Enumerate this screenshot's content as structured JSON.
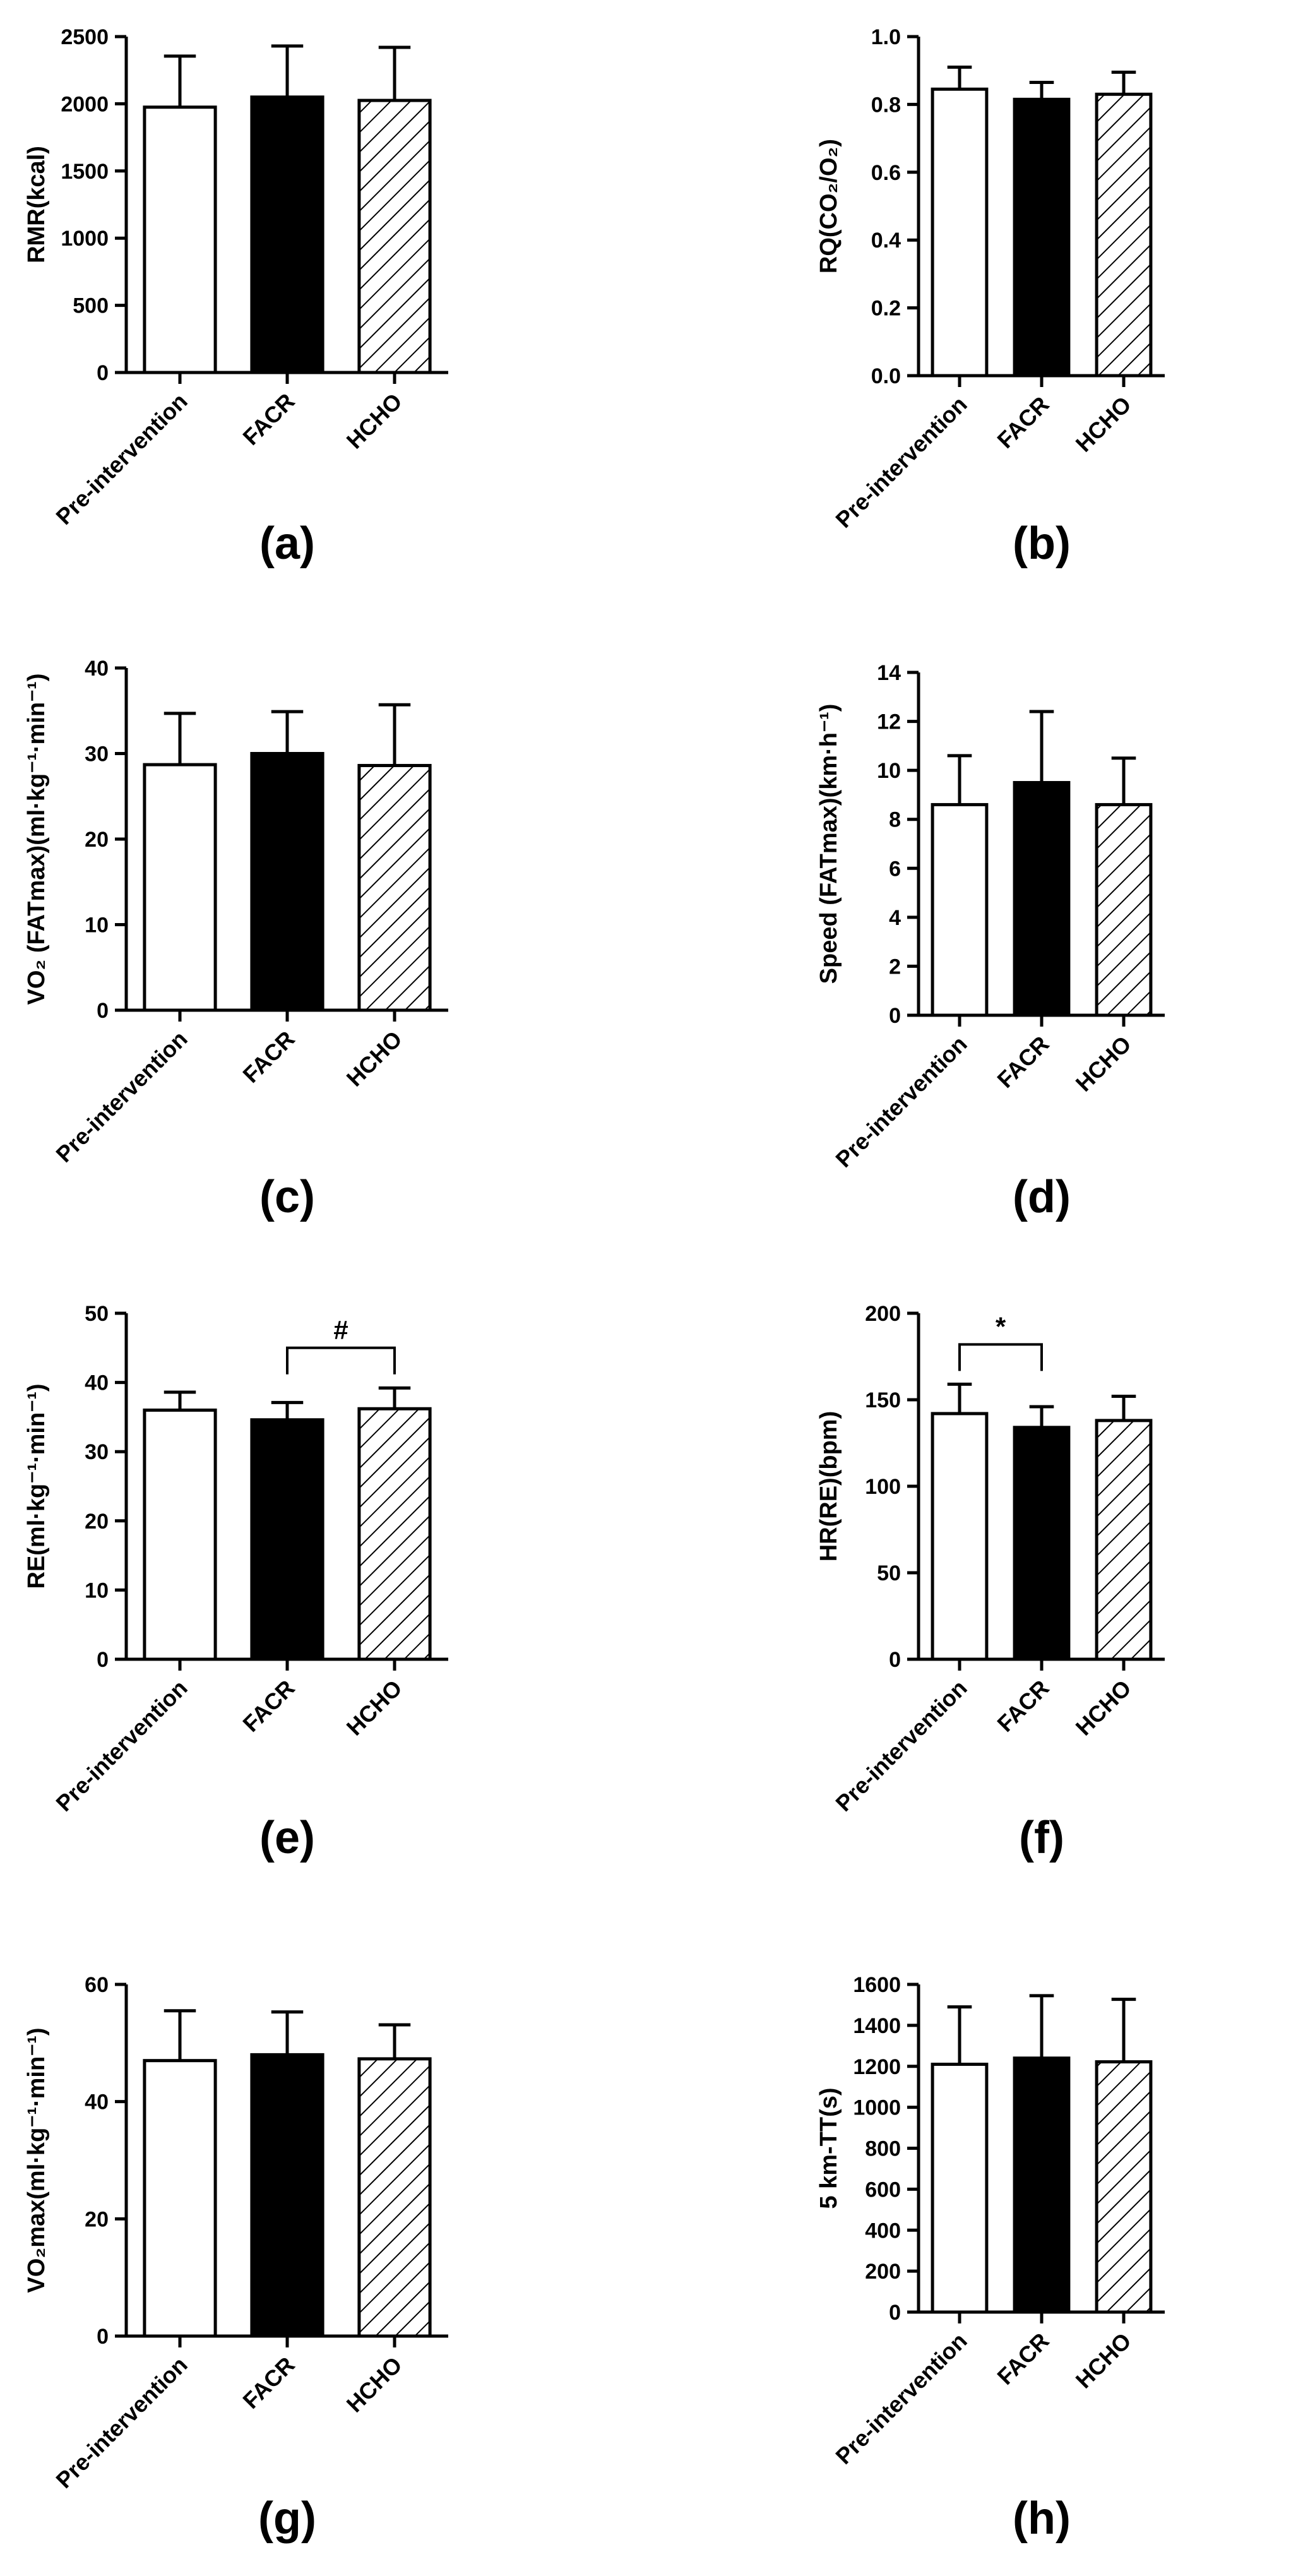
{
  "colors": {
    "ink": "#000000",
    "paper": "#ffffff"
  },
  "chart_data": [
    {
      "id": "a",
      "type": "bar",
      "panel_label": "(a)",
      "ylabel": "RMR(kcal)",
      "categories": [
        "Pre-intervention",
        "FACR",
        "HCHO"
      ],
      "values": [
        1975,
        2050,
        2025
      ],
      "errors": [
        380,
        380,
        395
      ],
      "ylim": [
        0,
        2500
      ],
      "yticks": [
        0,
        500,
        1000,
        1500,
        2000,
        2500
      ],
      "yticklabels": [
        "0",
        "500",
        "1000",
        "1500",
        "2000",
        "2500"
      ],
      "fills": [
        "white",
        "black",
        "hatch"
      ],
      "bracket": null
    },
    {
      "id": "b",
      "type": "bar",
      "panel_label": "(b)",
      "ylabel": "RQ(CO₂/O₂)",
      "categories": [
        "Pre-intervention",
        "FACR",
        "HCHO"
      ],
      "values": [
        0.845,
        0.815,
        0.83
      ],
      "errors": [
        0.065,
        0.05,
        0.065
      ],
      "ylim": [
        0,
        1.0
      ],
      "yticks": [
        0,
        0.2,
        0.4,
        0.6,
        0.8,
        1.0
      ],
      "yticklabels": [
        "0.0",
        "0.2",
        "0.4",
        "0.6",
        "0.8",
        "1.0"
      ],
      "fills": [
        "white",
        "black",
        "hatch"
      ],
      "bracket": null
    },
    {
      "id": "c",
      "type": "bar",
      "panel_label": "(c)",
      "ylabel": "VO₂ (FATmax)(ml·kg⁻¹·min⁻¹)",
      "categories": [
        "Pre-intervention",
        "FACR",
        "HCHO"
      ],
      "values": [
        28.7,
        30.0,
        28.6
      ],
      "errors": [
        6.0,
        4.9,
        7.1
      ],
      "ylim": [
        0,
        40
      ],
      "yticks": [
        0,
        10,
        20,
        30,
        40
      ],
      "yticklabels": [
        "0",
        "10",
        "20",
        "30",
        "40"
      ],
      "fills": [
        "white",
        "black",
        "hatch"
      ],
      "bracket": null
    },
    {
      "id": "d",
      "type": "bar",
      "panel_label": "(d)",
      "ylabel": "Speed (FATmax)(km·h⁻¹)",
      "categories": [
        "Pre-intervention",
        "FACR",
        "HCHO"
      ],
      "values": [
        8.6,
        9.5,
        8.6
      ],
      "errors": [
        2.0,
        2.9,
        1.9
      ],
      "ylim": [
        0,
        14
      ],
      "yticks": [
        0,
        2,
        4,
        6,
        8,
        10,
        12,
        14
      ],
      "yticklabels": [
        "0",
        "2",
        "4",
        "6",
        "8",
        "10",
        "12",
        "14"
      ],
      "fills": [
        "white",
        "black",
        "hatch"
      ],
      "bracket": null
    },
    {
      "id": "e",
      "type": "bar",
      "panel_label": "(e)",
      "ylabel": "RE(ml·kg⁻¹·min⁻¹)",
      "categories": [
        "Pre-intervention",
        "FACR",
        "HCHO"
      ],
      "values": [
        36.0,
        34.6,
        36.2
      ],
      "errors": [
        2.6,
        2.5,
        3.0
      ],
      "ylim": [
        0,
        50
      ],
      "yticks": [
        0,
        10,
        20,
        30,
        40,
        50
      ],
      "yticklabels": [
        "0",
        "10",
        "20",
        "30",
        "40",
        "50"
      ],
      "fills": [
        "white",
        "black",
        "hatch"
      ],
      "bracket": {
        "from": 1,
        "to": 2,
        "label": "#",
        "level": 45
      }
    },
    {
      "id": "f",
      "type": "bar",
      "panel_label": "(f)",
      "ylabel": "HR(RE)(bpm)",
      "categories": [
        "Pre-intervention",
        "FACR",
        "HCHO"
      ],
      "values": [
        142,
        134,
        138
      ],
      "errors": [
        17,
        12,
        14
      ],
      "ylim": [
        0,
        200
      ],
      "yticks": [
        0,
        50,
        100,
        150,
        200
      ],
      "yticklabels": [
        "0",
        "50",
        "100",
        "150",
        "200"
      ],
      "fills": [
        "white",
        "black",
        "hatch"
      ],
      "bracket": {
        "from": 0,
        "to": 1,
        "label": "*",
        "level": 182
      }
    },
    {
      "id": "g",
      "type": "bar",
      "panel_label": "(g)",
      "ylabel": "VO₂max(ml·kg⁻¹·min⁻¹)",
      "categories": [
        "Pre-intervention",
        "FACR",
        "HCHO"
      ],
      "values": [
        47.0,
        48.0,
        47.3
      ],
      "errors": [
        8.5,
        7.3,
        5.8
      ],
      "ylim": [
        0,
        60
      ],
      "yticks": [
        0,
        20,
        40,
        60
      ],
      "yticklabels": [
        "0",
        "20",
        "40",
        "60"
      ],
      "fills": [
        "white",
        "black",
        "hatch"
      ],
      "bracket": null
    },
    {
      "id": "h",
      "type": "bar",
      "panel_label": "(h)",
      "ylabel": "5 km-TT(s)",
      "categories": [
        "Pre-intervention",
        "FACR",
        "HCHO"
      ],
      "values": [
        1210,
        1240,
        1222
      ],
      "errors": [
        280,
        305,
        305
      ],
      "ylim": [
        0,
        1600
      ],
      "yticks": [
        0,
        200,
        400,
        600,
        800,
        1000,
        1200,
        1400,
        1600
      ],
      "yticklabels": [
        "0",
        "200",
        "400",
        "600",
        "800",
        "1000",
        "1200",
        "1400",
        "1600"
      ],
      "fills": [
        "white",
        "black",
        "hatch"
      ],
      "bracket": null
    }
  ]
}
